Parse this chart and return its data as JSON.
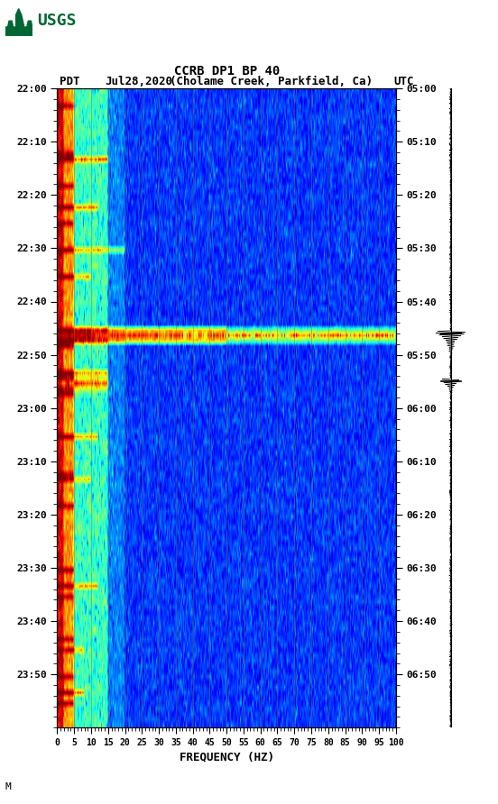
{
  "title_line1": "CCRB DP1 BP 40",
  "title_line2_pdt": "PDT",
  "title_line2_date": "Jul28,2020",
  "title_line2_loc": "(Cholame Creek, Parkfield, Ca)",
  "title_line2_utc": "UTC",
  "xlabel": "FREQUENCY (HZ)",
  "freq_min": 0,
  "freq_max": 100,
  "freq_ticks": [
    0,
    5,
    10,
    15,
    20,
    25,
    30,
    35,
    40,
    45,
    50,
    55,
    60,
    65,
    70,
    75,
    80,
    85,
    90,
    95,
    100
  ],
  "time_labels_pdt": [
    "22:00",
    "22:10",
    "22:20",
    "22:30",
    "22:40",
    "22:50",
    "23:00",
    "23:10",
    "23:20",
    "23:30",
    "23:40",
    "23:50"
  ],
  "time_labels_utc": [
    "05:00",
    "05:10",
    "05:20",
    "05:30",
    "05:40",
    "05:50",
    "06:00",
    "06:10",
    "06:20",
    "06:30",
    "06:40",
    "06:50"
  ],
  "n_time": 120,
  "n_freq": 400,
  "background_color": "white",
  "usgs_logo_color": "#006633",
  "seismogram_color": "black",
  "eq_time1": 46,
  "eq_time2": 55,
  "vertical_line_color": "#8B6000",
  "vertical_line_positions": [
    5,
    10,
    15,
    20,
    25,
    30,
    35,
    40,
    45,
    50,
    55,
    60,
    65,
    70,
    75,
    80,
    85,
    90,
    95
  ]
}
